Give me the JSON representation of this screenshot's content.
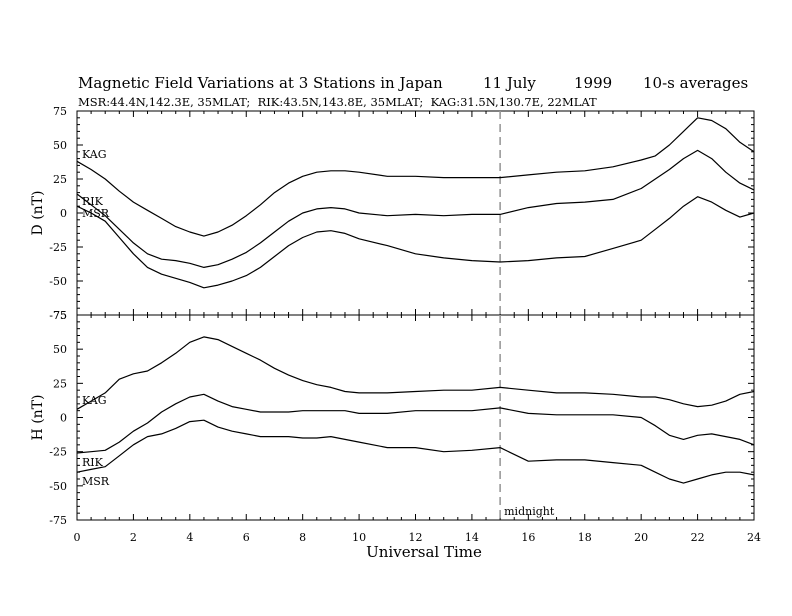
{
  "chart_data": {
    "type": "line",
    "title": "Magnetic Field Variations at 3 Stations in Japan",
    "date": "11 July",
    "year": "1999",
    "averaging": "10-s averages",
    "subtitle": "MSR:44.4N,142.3E, 35MLAT;  RIK:43.5N,143.8E, 35MLAT;  KAG:31.5N,130.7E, 22MLAT",
    "xlabel": "Universal Time",
    "xlim": [
      0,
      24
    ],
    "xticks": [
      "0",
      "2",
      "4",
      "6",
      "8",
      "10",
      "12",
      "14",
      "16",
      "18",
      "20",
      "22",
      "24"
    ],
    "midnight": {
      "x": 15,
      "label": "midnight"
    },
    "panels": [
      {
        "ylabel": "D (nT)",
        "ylim": [
          -75,
          75
        ],
        "yticks": [
          "75",
          "50",
          "25",
          "0",
          "-25",
          "-50",
          "-75"
        ],
        "series": [
          {
            "name": "KAG",
            "x": [
              0,
              0.5,
              1,
              1.5,
              2,
              2.5,
              3,
              3.5,
              4,
              4.5,
              5,
              5.5,
              6,
              6.5,
              7,
              7.5,
              8,
              8.5,
              9,
              9.5,
              10,
              11,
              12,
              13,
              14,
              15,
              16,
              17,
              18,
              19,
              20,
              20.5,
              21,
              21.5,
              22,
              22.5,
              23,
              23.5,
              24
            ],
            "y": [
              38,
              32,
              25,
              16,
              8,
              2,
              -4,
              -10,
              -14,
              -17,
              -14,
              -9,
              -2,
              6,
              15,
              22,
              27,
              30,
              31,
              31,
              30,
              27,
              27,
              26,
              26,
              26,
              28,
              30,
              31,
              34,
              39,
              42,
              50,
              60,
              70,
              68,
              62,
              52,
              45
            ]
          },
          {
            "name": "RIK",
            "x": [
              0,
              0.5,
              1,
              1.5,
              2,
              2.5,
              3,
              3.5,
              4,
              4.5,
              5,
              5.5,
              6,
              6.5,
              7,
              7.5,
              8,
              8.5,
              9,
              9.5,
              10,
              11,
              12,
              13,
              14,
              15,
              16,
              17,
              18,
              19,
              20,
              20.5,
              21,
              21.5,
              22,
              22.5,
              23,
              23.5,
              24
            ],
            "y": [
              14,
              6,
              -2,
              -12,
              -22,
              -30,
              -34,
              -35,
              -37,
              -40,
              -38,
              -34,
              -29,
              -22,
              -14,
              -6,
              0,
              3,
              4,
              3,
              0,
              -2,
              -1,
              -2,
              -1,
              -1,
              4,
              7,
              8,
              10,
              18,
              25,
              32,
              40,
              46,
              40,
              30,
              22,
              17
            ]
          },
          {
            "name": "MSR",
            "x": [
              0,
              0.5,
              1,
              1.5,
              2,
              2.5,
              3,
              3.5,
              4,
              4.5,
              5,
              5.5,
              6,
              6.5,
              7,
              7.5,
              8,
              8.5,
              9,
              9.5,
              10,
              11,
              12,
              13,
              14,
              15,
              16,
              17,
              18,
              19,
              20,
              20.5,
              21,
              21.5,
              22,
              22.5,
              23,
              23.5,
              24
            ],
            "y": [
              5,
              0,
              -6,
              -18,
              -30,
              -40,
              -45,
              -48,
              -51,
              -55,
              -53,
              -50,
              -46,
              -40,
              -32,
              -24,
              -18,
              -14,
              -13,
              -15,
              -19,
              -24,
              -30,
              -33,
              -35,
              -36,
              -35,
              -33,
              -32,
              -26,
              -20,
              -12,
              -4,
              5,
              12,
              8,
              2,
              -3,
              0
            ]
          }
        ],
        "labels": [
          {
            "text": "KAG"
          },
          {
            "text": "RIK"
          },
          {
            "text": "MSR"
          }
        ]
      },
      {
        "ylabel": "H (nT)",
        "ylim": [
          -75,
          75
        ],
        "yticks": [
          "75",
          "50",
          "25",
          "0",
          "-25",
          "-50",
          "-75"
        ],
        "series": [
          {
            "name": "KAG",
            "x": [
              0,
              0.5,
              1,
              1.5,
              2,
              2.5,
              3,
              3.5,
              4,
              4.5,
              5,
              5.5,
              6,
              6.5,
              7,
              7.5,
              8,
              8.5,
              9,
              9.5,
              10,
              11,
              12,
              13,
              14,
              15,
              16,
              17,
              18,
              19,
              20,
              20.5,
              21,
              21.5,
              22,
              22.5,
              23,
              23.5,
              24
            ],
            "y": [
              6,
              12,
              18,
              28,
              32,
              34,
              40,
              47,
              55,
              59,
              57,
              52,
              47,
              42,
              36,
              31,
              27,
              24,
              22,
              19,
              18,
              18,
              19,
              20,
              20,
              22,
              20,
              18,
              18,
              17,
              15,
              15,
              13,
              10,
              8,
              9,
              12,
              17,
              19
            ]
          },
          {
            "name": "RIK",
            "x": [
              0,
              0.5,
              1,
              1.5,
              2,
              2.5,
              3,
              3.5,
              4,
              4.5,
              5,
              5.5,
              6,
              6.5,
              7,
              7.5,
              8,
              8.5,
              9,
              9.5,
              10,
              11,
              12,
              13,
              14,
              15,
              16,
              17,
              18,
              19,
              20,
              20.5,
              21,
              21.5,
              22,
              22.5,
              23,
              23.5,
              24
            ],
            "y": [
              -26,
              -25,
              -24,
              -18,
              -10,
              -4,
              4,
              10,
              15,
              17,
              12,
              8,
              6,
              4,
              4,
              4,
              5,
              5,
              5,
              5,
              3,
              3,
              5,
              5,
              5,
              7,
              3,
              2,
              2,
              2,
              0,
              -6,
              -13,
              -16,
              -13,
              -12,
              -14,
              -16,
              -20
            ]
          },
          {
            "name": "MSR",
            "x": [
              0,
              0.5,
              1,
              1.5,
              2,
              2.5,
              3,
              3.5,
              4,
              4.5,
              5,
              5.5,
              6,
              6.5,
              7,
              7.5,
              8,
              8.5,
              9,
              9.5,
              10,
              11,
              12,
              13,
              14,
              15,
              16,
              17,
              18,
              19,
              20,
              20.5,
              21,
              21.5,
              22,
              22.5,
              23,
              23.5,
              24
            ],
            "y": [
              -40,
              -38,
              -36,
              -28,
              -20,
              -14,
              -12,
              -8,
              -3,
              -2,
              -7,
              -10,
              -12,
              -14,
              -14,
              -14,
              -15,
              -15,
              -14,
              -16,
              -18,
              -22,
              -22,
              -25,
              -24,
              -22,
              -32,
              -31,
              -31,
              -33,
              -35,
              -40,
              -45,
              -48,
              -45,
              -42,
              -40,
              -40,
              -42
            ]
          }
        ],
        "labels": [
          {
            "text": "KAG"
          },
          {
            "text": "RIK"
          },
          {
            "text": "MSR"
          }
        ]
      }
    ]
  }
}
